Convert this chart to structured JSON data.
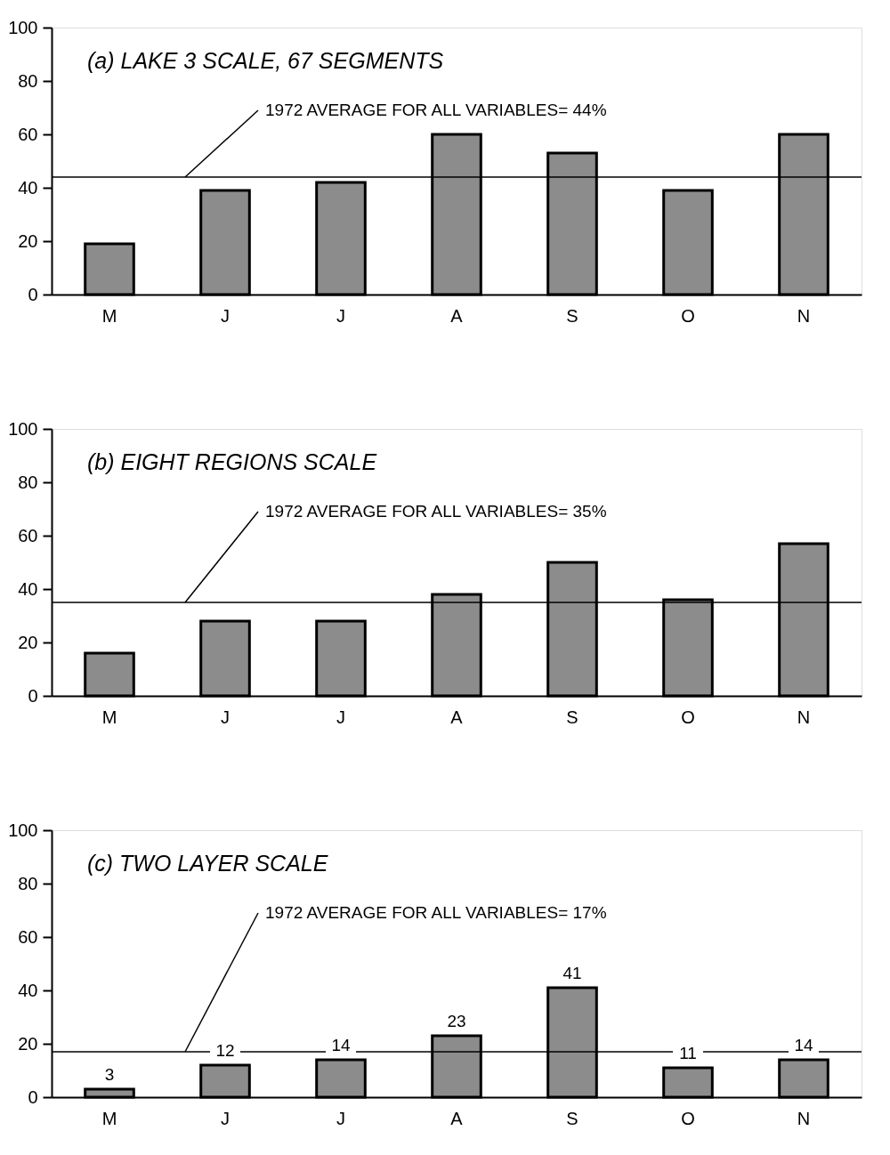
{
  "chart_data": [
    {
      "type": "bar",
      "title": "(a) LAKE 3 SCALE, 67 SEGMENTS",
      "categories": [
        "M",
        "J",
        "J",
        "A",
        "S",
        "O",
        "N"
      ],
      "values": [
        19,
        39,
        42,
        60,
        53,
        39,
        60
      ],
      "color": "#8c8c8c",
      "ylim": [
        0,
        100
      ],
      "yticks": [
        0,
        20,
        40,
        60,
        80,
        100
      ],
      "grid": false,
      "ref_lines": [
        {
          "axis": "y",
          "value": 44,
          "label": "1972 AVERAGE FOR ALL VARIABLES= 44%"
        }
      ]
    },
    {
      "type": "bar",
      "title": "(b) EIGHT REGIONS SCALE",
      "categories": [
        "M",
        "J",
        "J",
        "A",
        "S",
        "O",
        "N"
      ],
      "values": [
        16,
        28,
        28,
        38,
        50,
        36,
        57
      ],
      "color": "#8c8c8c",
      "ylim": [
        0,
        100
      ],
      "yticks": [
        0,
        20,
        40,
        60,
        80,
        100
      ],
      "grid": false,
      "ref_lines": [
        {
          "axis": "y",
          "value": 35,
          "label": "1972 AVERAGE FOR ALL VARIABLES= 35%"
        }
      ]
    },
    {
      "type": "bar",
      "title": "(c) TWO LAYER SCALE",
      "categories": [
        "M",
        "J",
        "J",
        "A",
        "S",
        "O",
        "N"
      ],
      "values": [
        3,
        12,
        14,
        23,
        41,
        11,
        14
      ],
      "color": "#8c8c8c",
      "ylim": [
        0,
        100
      ],
      "yticks": [
        0,
        20,
        40,
        60,
        80,
        100
      ],
      "grid": false,
      "data_labels": true,
      "ref_lines": [
        {
          "axis": "y",
          "value": 17,
          "label": "1972 AVERAGE FOR ALL VARIABLES= 17%"
        }
      ]
    }
  ]
}
